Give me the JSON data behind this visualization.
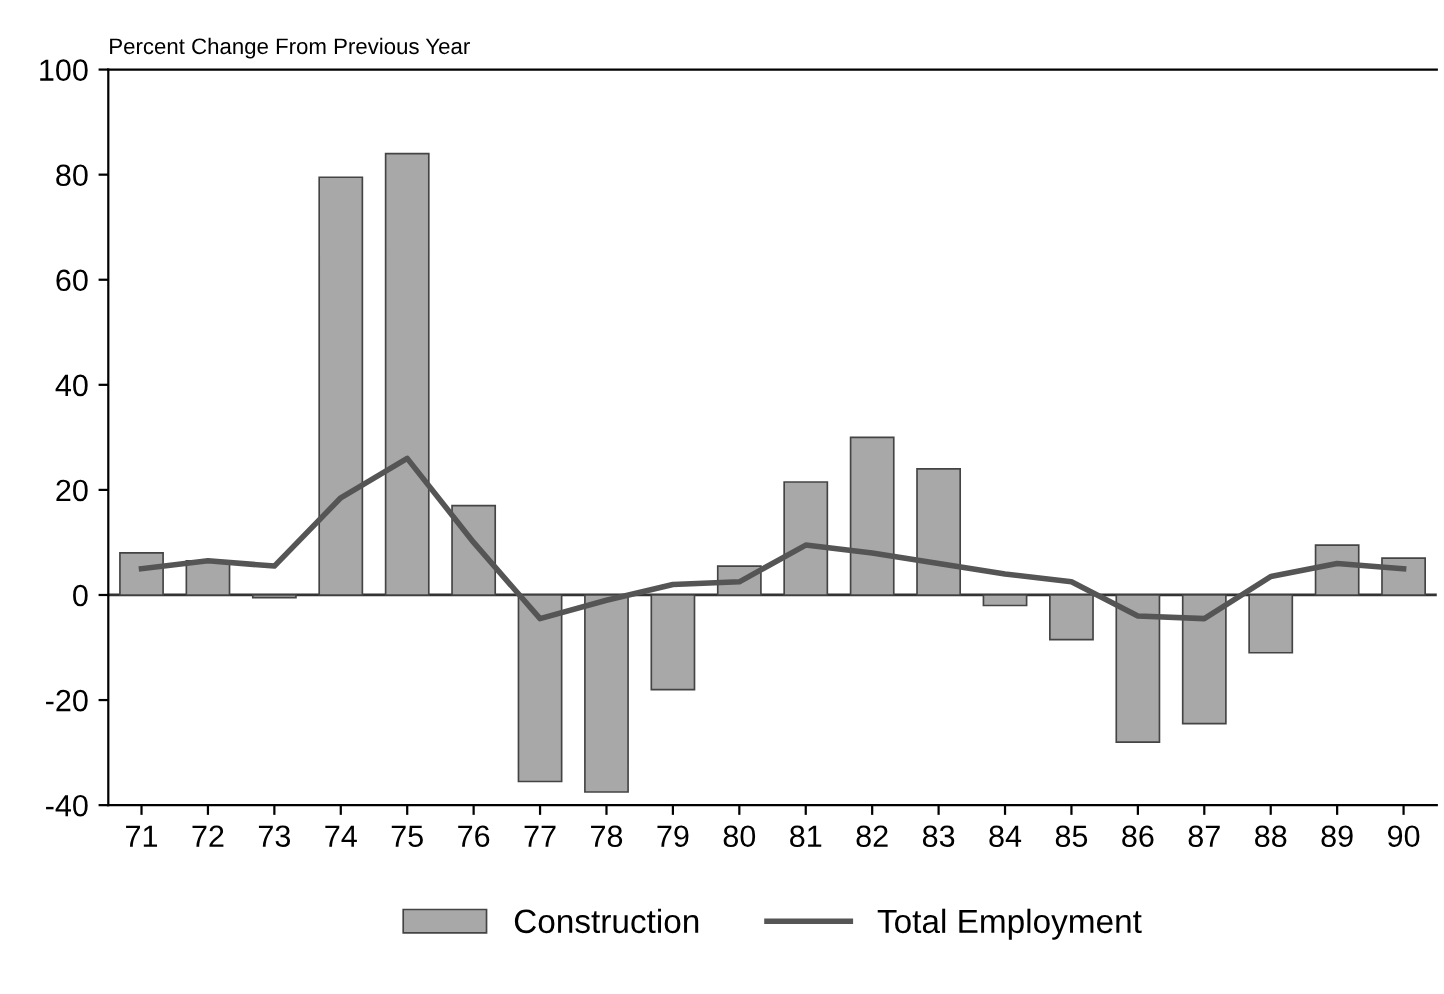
{
  "chart_data": {
    "type": "bar",
    "title": "Percent Change From Previous Year",
    "categories": [
      "71",
      "72",
      "73",
      "74",
      "75",
      "76",
      "77",
      "78",
      "79",
      "80",
      "81",
      "82",
      "83",
      "84",
      "85",
      "86",
      "87",
      "88",
      "89",
      "90"
    ],
    "series": [
      {
        "name": "Construction",
        "color": "#a8a8a8",
        "values": [
          8,
          6.5,
          -0.5,
          79.5,
          84,
          17,
          -35.5,
          -37.5,
          -18,
          5.5,
          21.5,
          30,
          24,
          -2,
          -8.5,
          -28,
          -24.5,
          -11,
          9.5,
          7
        ]
      },
      {
        "name": "Total Employment",
        "type": "line",
        "color": "#555555",
        "values": [
          5,
          6.5,
          5.5,
          18.5,
          26,
          10,
          -4.5,
          -1,
          2,
          2.5,
          9.5,
          8,
          6,
          4,
          2.5,
          -4,
          -4.5,
          3.5,
          6,
          5
        ]
      }
    ],
    "ylim": [
      -40,
      100
    ],
    "yticks": [
      -40,
      -20,
      0,
      20,
      40,
      60,
      80,
      100
    ],
    "ref_lines": [
      {
        "axis": "y",
        "value": 0,
        "color": "#333333"
      }
    ],
    "grid": false,
    "legend": "bottom",
    "marker": "none",
    "line_style": "solid"
  }
}
